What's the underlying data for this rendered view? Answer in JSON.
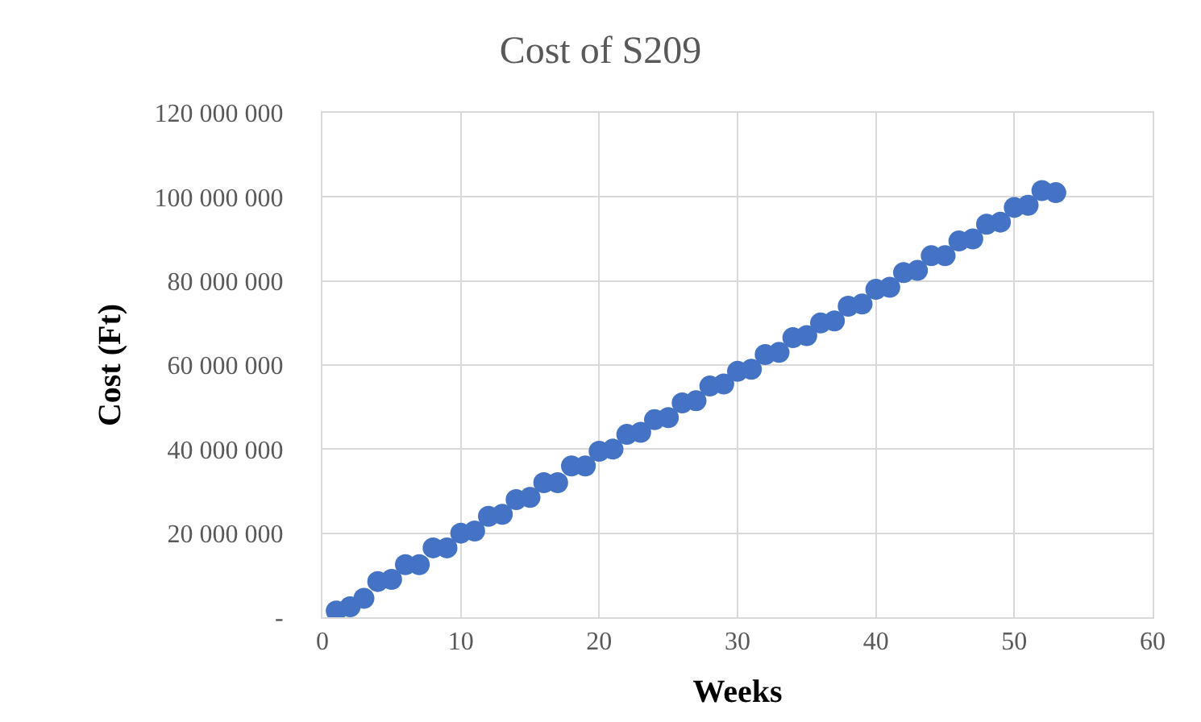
{
  "chart_data": {
    "type": "scatter",
    "title": "Cost of S209",
    "xlabel": "Weeks",
    "ylabel": "Cost (Ft)",
    "x": [
      1,
      2,
      3,
      4,
      5,
      6,
      7,
      8,
      9,
      10,
      11,
      12,
      13,
      14,
      15,
      16,
      17,
      18,
      19,
      20,
      21,
      22,
      23,
      24,
      25,
      26,
      27,
      28,
      29,
      30,
      31,
      32,
      33,
      34,
      35,
      36,
      37,
      38,
      39,
      40,
      41,
      42,
      43,
      44,
      45,
      46,
      47,
      48,
      49,
      50,
      51,
      52,
      53
    ],
    "series": [
      {
        "color": "#4472c4",
        "values": [
          1500000,
          2500000,
          4500000,
          8500000,
          9000000,
          12500000,
          12500000,
          16500000,
          16500000,
          20000000,
          20500000,
          24000000,
          24500000,
          28000000,
          28500000,
          32000000,
          32000000,
          36000000,
          36000000,
          39500000,
          40000000,
          43500000,
          44000000,
          47000000,
          47500000,
          51000000,
          51500000,
          55000000,
          55500000,
          58500000,
          59000000,
          62500000,
          63000000,
          66500000,
          67000000,
          70000000,
          70500000,
          74000000,
          74500000,
          78000000,
          78500000,
          82000000,
          82500000,
          86000000,
          86000000,
          89500000,
          90000000,
          93500000,
          94000000,
          97500000,
          98000000,
          101500000,
          101000000
        ]
      }
    ],
    "xlim": [
      0,
      60
    ],
    "xticks": [
      0,
      10,
      20,
      30,
      40,
      50,
      60
    ],
    "ylim": [
      0,
      120000000
    ],
    "yticks": [
      {
        "value": 0,
        "label": "-"
      },
      {
        "value": 20000000,
        "label": "20 000 000"
      },
      {
        "value": 40000000,
        "label": "40 000 000"
      },
      {
        "value": 60000000,
        "label": "60 000 000"
      },
      {
        "value": 80000000,
        "label": "80 000 000"
      },
      {
        "value": 100000000,
        "label": "100 000 000"
      },
      {
        "value": 120000000,
        "label": "120 000 000"
      }
    ],
    "grid": true,
    "marker": "circle"
  }
}
